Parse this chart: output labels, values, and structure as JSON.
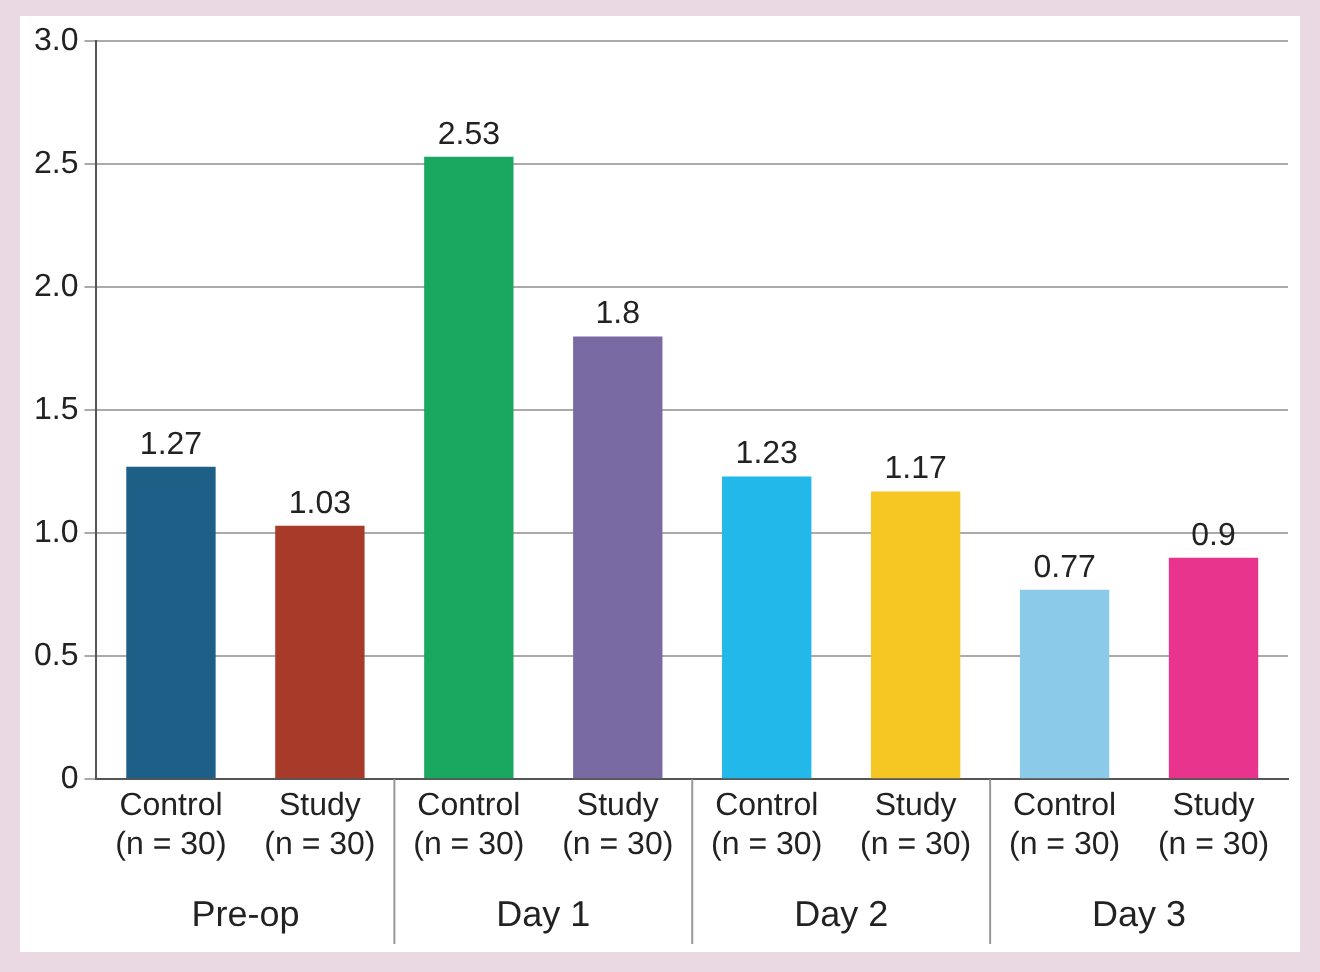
{
  "chart_data": {
    "type": "bar",
    "categories": [
      "Control (n = 30)",
      "Study (n = 30)",
      "Control (n = 30)",
      "Study (n = 30)",
      "Control (n = 30)",
      "Study (n = 30)",
      "Control (n = 30)",
      "Study (n = 30)"
    ],
    "values": [
      1.27,
      1.03,
      2.53,
      1.8,
      1.23,
      1.17,
      0.77,
      0.9
    ],
    "colors": [
      "#1d5f86",
      "#a83a2a",
      "#1aa860",
      "#7a6aa4",
      "#22b8ea",
      "#f6c622",
      "#8ccaea",
      "#e8348c"
    ],
    "annotations": [
      "Pre-op",
      "Day 1",
      "Day 2",
      "Day 3"
    ],
    "ylim": [
      0,
      3
    ],
    "yticks": [
      0,
      0.5,
      {
        "value": 1,
        "label": "1.0"
      },
      1.5,
      {
        "value": 2,
        "label": "2.0"
      },
      2.5,
      {
        "value": 3,
        "label": "3.0"
      }
    ],
    "grid": "y",
    "data_labels": true,
    "legend": false
  }
}
